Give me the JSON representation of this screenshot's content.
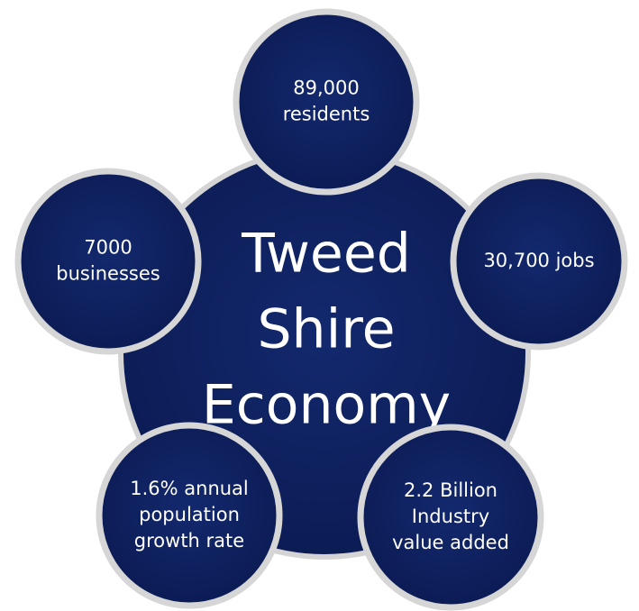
{
  "center": {
    "lines": [
      "Tweed",
      "Shire",
      "Economy"
    ]
  },
  "nodes": [
    {
      "lines": [
        "89,000",
        "residents"
      ]
    },
    {
      "lines": [
        "30,700 jobs"
      ]
    },
    {
      "lines": [
        "2.2 Billion",
        "Industry",
        "value added"
      ]
    },
    {
      "lines": [
        "1.6% annual",
        "population",
        "growth rate"
      ]
    },
    {
      "lines": [
        "7000",
        "businesses"
      ]
    }
  ]
}
